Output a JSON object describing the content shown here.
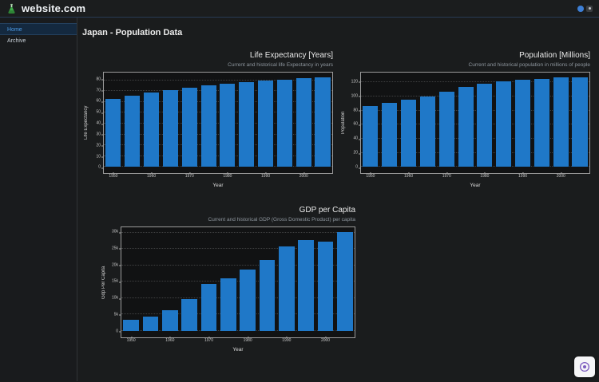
{
  "header": {
    "brand": "website.com",
    "logo_icon": "flask-icon"
  },
  "sidebar": {
    "items": [
      {
        "label": "Home",
        "active": true
      },
      {
        "label": "Archive",
        "active": false
      }
    ]
  },
  "main": {
    "title": "Japan - Population Data"
  },
  "colors": {
    "bar": "#1f78c8",
    "accent_blue": "#4d9be6",
    "brand_green": "#3fae49",
    "widget_purple": "#7c5cbf"
  },
  "chart_data": [
    {
      "type": "bar",
      "title": "Life Expectancy [Years]",
      "subtitle": "Current and historical life Expectancy in years",
      "xlabel": "Year",
      "ylabel": "Life Expectancy",
      "categories": [
        1950,
        1955,
        1960,
        1965,
        1970,
        1975,
        1980,
        1985,
        1990,
        1995,
        2000,
        2005
      ],
      "values": [
        62.8,
        65.6,
        68.4,
        71.1,
        73.3,
        75.4,
        77.0,
        78.5,
        79.4,
        80.6,
        81.8,
        82.8
      ],
      "yticks": [
        0,
        10,
        20,
        30,
        40,
        50,
        60,
        70,
        80
      ],
      "xticks": [
        1950,
        1960,
        1970,
        1980,
        1990,
        2000
      ],
      "ylim": [
        0,
        87
      ],
      "grid": true,
      "legend": false,
      "bar_color": "#1f78c8"
    },
    {
      "type": "bar",
      "title": "Population [Millions]",
      "subtitle": "Current and historical population in millions of people",
      "xlabel": "Year",
      "ylabel": "Population",
      "categories": [
        1950,
        1955,
        1960,
        1965,
        1970,
        1975,
        1980,
        1985,
        1990,
        1995,
        2000,
        2005
      ],
      "values": [
        86,
        91,
        95.5,
        100.5,
        106.5,
        113.5,
        118,
        121.5,
        124,
        125.5,
        127,
        127.8
      ],
      "yticks": [
        0,
        20,
        40,
        60,
        80,
        100,
        120
      ],
      "xticks": [
        1950,
        1960,
        1970,
        1980,
        1990,
        2000
      ],
      "ylim": [
        0,
        134
      ],
      "grid": true,
      "legend": false,
      "bar_color": "#1f78c8"
    },
    {
      "type": "bar",
      "title": "GDP per Capita",
      "subtitle": "Current and historical GDP (Gross Domestic Product) per capita",
      "xlabel": "Year",
      "ylabel": "Gdp Per Capita",
      "categories": [
        1950,
        1955,
        1960,
        1965,
        1970,
        1975,
        1980,
        1985,
        1990,
        1995,
        2000,
        2005
      ],
      "values": [
        3400,
        4300,
        6400,
        9800,
        14400,
        16100,
        18800,
        21600,
        25800,
        27700,
        27400,
        30200
      ],
      "yticks": [
        0,
        5000,
        10000,
        15000,
        20000,
        25000,
        30000
      ],
      "ytick_format": "k",
      "xticks": [
        1950,
        1960,
        1970,
        1980,
        1990,
        2000
      ],
      "ylim": [
        0,
        31700
      ],
      "grid": true,
      "legend": false,
      "bar_color": "#1f78c8"
    }
  ],
  "floating_widget": {
    "icon": "accessibility-badge-icon"
  }
}
